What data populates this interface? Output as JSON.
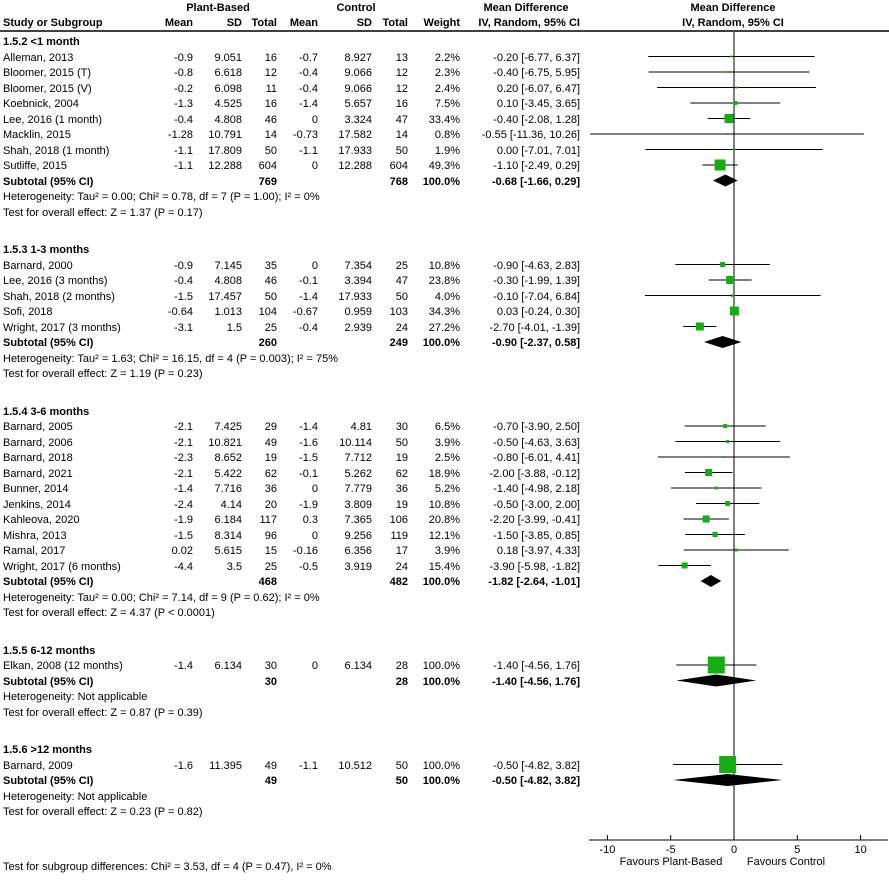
{
  "header": {
    "plant_based": "Plant-Based",
    "control": "Control",
    "mean_difference": "Mean Difference",
    "iv_random": "IV, Random, 95% CI",
    "study_or_subgroup": "Study or Subgroup",
    "mean": "Mean",
    "sd": "SD",
    "total": "Total",
    "weight": "Weight"
  },
  "axis": {
    "favours_left": "Favours Plant-Based",
    "favours_right": "Favours Control"
  },
  "footer": {
    "subgroup_differences": "Test for subgroup differences: Chi² = 3.53, df = 4 (P = 0.47), I² = 0%"
  },
  "colors": {
    "marker_green": "#14AE14",
    "diamond_black": "#000000",
    "line_black": "#000000"
  },
  "chart_data": {
    "type": "forest",
    "effect_label": "Mean Difference",
    "method": "IV, Random, 95% CI",
    "x_ticks": [
      -10,
      -5,
      0,
      5,
      10
    ],
    "x_range": [
      -11.5,
      12.2
    ],
    "favours_left": "Favours Plant-Based",
    "favours_right": "Favours Control",
    "groups": [
      {
        "label": "1.5.2 <1 month",
        "studies": [
          {
            "name": "Alleman, 2013",
            "pb_mean": -0.9,
            "pb_sd": 9.051,
            "pb_total": 16,
            "c_mean": -0.7,
            "c_sd": 8.927,
            "c_total": 13,
            "weight_pct": 2.2,
            "md": -0.2,
            "ci_low": -6.77,
            "ci_high": 6.37
          },
          {
            "name": "Bloomer, 2015 (T)",
            "pb_mean": -0.8,
            "pb_sd": 6.618,
            "pb_total": 12,
            "c_mean": -0.4,
            "c_sd": 9.066,
            "c_total": 12,
            "weight_pct": 2.3,
            "md": -0.4,
            "ci_low": -6.75,
            "ci_high": 5.95
          },
          {
            "name": "Bloomer, 2015 (V)",
            "pb_mean": -0.2,
            "pb_sd": 6.098,
            "pb_total": 11,
            "c_mean": -0.4,
            "c_sd": 9.066,
            "c_total": 12,
            "weight_pct": 2.4,
            "md": 0.2,
            "ci_low": -6.07,
            "ci_high": 6.47
          },
          {
            "name": "Koebnick, 2004",
            "pb_mean": -1.3,
            "pb_sd": 4.525,
            "pb_total": 16,
            "c_mean": -1.4,
            "c_sd": 5.657,
            "c_total": 16,
            "weight_pct": 7.5,
            "md": 0.1,
            "ci_low": -3.45,
            "ci_high": 3.65
          },
          {
            "name": "Lee, 2016 (1 month)",
            "pb_mean": -0.4,
            "pb_sd": 4.808,
            "pb_total": 46,
            "c_mean": 0,
            "c_sd": 3.324,
            "c_total": 47,
            "weight_pct": 33.4,
            "md": -0.4,
            "ci_low": -2.08,
            "ci_high": 1.28
          },
          {
            "name": "Macklin, 2015",
            "pb_mean": -1.28,
            "pb_sd": 10.791,
            "pb_total": 14,
            "c_mean": -0.73,
            "c_sd": 17.582,
            "c_total": 14,
            "weight_pct": 0.8,
            "md": -0.55,
            "ci_low": -11.36,
            "ci_high": 10.26
          },
          {
            "name": "Shah, 2018 (1 month)",
            "pb_mean": -1.1,
            "pb_sd": 17.809,
            "pb_total": 50,
            "c_mean": -1.1,
            "c_sd": 17.933,
            "c_total": 50,
            "weight_pct": 1.9,
            "md": 0,
            "ci_low": -7.01,
            "ci_high": 7.01
          },
          {
            "name": "Sutliffe, 2015",
            "pb_mean": -1.1,
            "pb_sd": 12.288,
            "pb_total": 604,
            "c_mean": 0,
            "c_sd": 12.288,
            "c_total": 604,
            "weight_pct": 49.3,
            "md": -1.1,
            "ci_low": -2.49,
            "ci_high": 0.29
          }
        ],
        "subtotal": {
          "label": "Subtotal (95% CI)",
          "pb_total": 769,
          "c_total": 768,
          "weight_pct": 100.0,
          "md": -0.68,
          "ci_low": -1.66,
          "ci_high": 0.29
        },
        "heterogeneity": "Heterogeneity: Tau² = 0.00; Chi² = 0.78, df = 7 (P = 1.00); I² = 0%",
        "overall_effect": "Test for overall effect: Z = 1.37 (P = 0.17)"
      },
      {
        "label": "1.5.3 1-3 months",
        "studies": [
          {
            "name": "Barnard, 2000",
            "pb_mean": -0.9,
            "pb_sd": 7.145,
            "pb_total": 35,
            "c_mean": 0,
            "c_sd": 7.354,
            "c_total": 25,
            "weight_pct": 10.8,
            "md": -0.9,
            "ci_low": -4.63,
            "ci_high": 2.83
          },
          {
            "name": "Lee, 2016 (3 months)",
            "pb_mean": -0.4,
            "pb_sd": 4.808,
            "pb_total": 46,
            "c_mean": -0.1,
            "c_sd": 3.394,
            "c_total": 47,
            "weight_pct": 23.8,
            "md": -0.3,
            "ci_low": -1.99,
            "ci_high": 1.39
          },
          {
            "name": "Shah, 2018 (2 months)",
            "pb_mean": -1.5,
            "pb_sd": 17.457,
            "pb_total": 50,
            "c_mean": -1.4,
            "c_sd": 17.933,
            "c_total": 50,
            "weight_pct": 4.0,
            "md": -0.1,
            "ci_low": -7.04,
            "ci_high": 6.84
          },
          {
            "name": "Sofi, 2018",
            "pb_mean": -0.64,
            "pb_sd": 1.013,
            "pb_total": 104,
            "c_mean": -0.67,
            "c_sd": 0.959,
            "c_total": 103,
            "weight_pct": 34.3,
            "md": 0.03,
            "ci_low": -0.24,
            "ci_high": 0.3
          },
          {
            "name": "Wright, 2017 (3 months)",
            "pb_mean": -3.1,
            "pb_sd": 1.5,
            "pb_total": 25,
            "c_mean": -0.4,
            "c_sd": 2.939,
            "c_total": 24,
            "weight_pct": 27.2,
            "md": -2.7,
            "ci_low": -4.01,
            "ci_high": -1.39
          }
        ],
        "subtotal": {
          "label": "Subtotal (95% CI)",
          "pb_total": 260,
          "c_total": 249,
          "weight_pct": 100.0,
          "md": -0.9,
          "ci_low": -2.37,
          "ci_high": 0.58
        },
        "heterogeneity": "Heterogeneity: Tau² = 1.63; Chi² = 16.15, df = 4 (P = 0.003); I² = 75%",
        "overall_effect": "Test for overall effect: Z = 1.19 (P = 0.23)"
      },
      {
        "label": "1.5.4 3-6 months",
        "studies": [
          {
            "name": "Barnard, 2005",
            "pb_mean": -2.1,
            "pb_sd": 7.425,
            "pb_total": 29,
            "c_mean": -1.4,
            "c_sd": 4.81,
            "c_total": 30,
            "weight_pct": 6.5,
            "md": -0.7,
            "ci_low": -3.9,
            "ci_high": 2.5
          },
          {
            "name": "Barnard, 2006",
            "pb_mean": -2.1,
            "pb_sd": 10.821,
            "pb_total": 49,
            "c_mean": -1.6,
            "c_sd": 10.114,
            "c_total": 50,
            "weight_pct": 3.9,
            "md": -0.5,
            "ci_low": -4.63,
            "ci_high": 3.63
          },
          {
            "name": "Barnard, 2018",
            "pb_mean": -2.3,
            "pb_sd": 8.652,
            "pb_total": 19,
            "c_mean": -1.5,
            "c_sd": 7.712,
            "c_total": 19,
            "weight_pct": 2.5,
            "md": -0.8,
            "ci_low": -6.01,
            "ci_high": 4.41
          },
          {
            "name": "Barnard, 2021",
            "pb_mean": -2.1,
            "pb_sd": 5.422,
            "pb_total": 62,
            "c_mean": -0.1,
            "c_sd": 5.262,
            "c_total": 62,
            "weight_pct": 18.9,
            "md": -2,
            "ci_low": -3.88,
            "ci_high": -0.12
          },
          {
            "name": "Bunner, 2014",
            "pb_mean": -1.4,
            "pb_sd": 7.716,
            "pb_total": 36,
            "c_mean": 0,
            "c_sd": 7.779,
            "c_total": 36,
            "weight_pct": 5.2,
            "md": -1.4,
            "ci_low": -4.98,
            "ci_high": 2.18
          },
          {
            "name": "Jenkins, 2014",
            "pb_mean": -2.4,
            "pb_sd": 4.14,
            "pb_total": 20,
            "c_mean": -1.9,
            "c_sd": 3.809,
            "c_total": 19,
            "weight_pct": 10.8,
            "md": -0.5,
            "ci_low": -3,
            "ci_high": 2
          },
          {
            "name": "Kahleova, 2020",
            "pb_mean": -1.9,
            "pb_sd": 6.184,
            "pb_total": 117,
            "c_mean": 0.3,
            "c_sd": 7.365,
            "c_total": 106,
            "weight_pct": 20.8,
            "md": -2.2,
            "ci_low": -3.99,
            "ci_high": -0.41
          },
          {
            "name": "Mishra, 2013",
            "pb_mean": -1.5,
            "pb_sd": 8.314,
            "pb_total": 96,
            "c_mean": 0,
            "c_sd": 9.256,
            "c_total": 119,
            "weight_pct": 12.1,
            "md": -1.5,
            "ci_low": -3.85,
            "ci_high": 0.85
          },
          {
            "name": "Ramal, 2017",
            "pb_mean": 0.02,
            "pb_sd": 5.615,
            "pb_total": 15,
            "c_mean": -0.16,
            "c_sd": 6.356,
            "c_total": 17,
            "weight_pct": 3.9,
            "md": 0.18,
            "ci_low": -3.97,
            "ci_high": 4.33
          },
          {
            "name": "Wright, 2017 (6 months)",
            "pb_mean": -4.4,
            "pb_sd": 3.5,
            "pb_total": 25,
            "c_mean": -0.5,
            "c_sd": 3.919,
            "c_total": 24,
            "weight_pct": 15.4,
            "md": -3.9,
            "ci_low": -5.98,
            "ci_high": -1.82
          }
        ],
        "subtotal": {
          "label": "Subtotal (95% CI)",
          "pb_total": 468,
          "c_total": 482,
          "weight_pct": 100.0,
          "md": -1.82,
          "ci_low": -2.64,
          "ci_high": -1.01
        },
        "heterogeneity": "Heterogeneity: Tau² = 0.00; Chi² = 7.14, df = 9 (P = 0.62); I² = 0%",
        "overall_effect": "Test for overall effect: Z = 4.37 (P < 0.0001)"
      },
      {
        "label": "1.5.5 6-12 months",
        "studies": [
          {
            "name": "Elkan, 2008 (12 months)",
            "pb_mean": -1.4,
            "pb_sd": 6.134,
            "pb_total": 30,
            "c_mean": 0,
            "c_sd": 6.134,
            "c_total": 28,
            "weight_pct": 100.0,
            "md": -1.4,
            "ci_low": -4.56,
            "ci_high": 1.76
          }
        ],
        "subtotal": {
          "label": "Subtotal (95% CI)",
          "pb_total": 30,
          "c_total": 28,
          "weight_pct": 100.0,
          "md": -1.4,
          "ci_low": -4.56,
          "ci_high": 1.76
        },
        "heterogeneity": "Heterogeneity: Not applicable",
        "overall_effect": "Test for overall effect: Z = 0.87 (P = 0.39)"
      },
      {
        "label": "1.5.6 >12 months",
        "studies": [
          {
            "name": "Barnard, 2009",
            "pb_mean": -1.6,
            "pb_sd": 11.395,
            "pb_total": 49,
            "c_mean": -1.1,
            "c_sd": 10.512,
            "c_total": 50,
            "weight_pct": 100.0,
            "md": -0.5,
            "ci_low": -4.82,
            "ci_high": 3.82
          }
        ],
        "subtotal": {
          "label": "Subtotal (95% CI)",
          "pb_total": 49,
          "c_total": 50,
          "weight_pct": 100.0,
          "md": -0.5,
          "ci_low": -4.82,
          "ci_high": 3.82
        },
        "heterogeneity": "Heterogeneity: Not applicable",
        "overall_effect": "Test for overall effect: Z = 0.23 (P = 0.82)"
      }
    ]
  }
}
